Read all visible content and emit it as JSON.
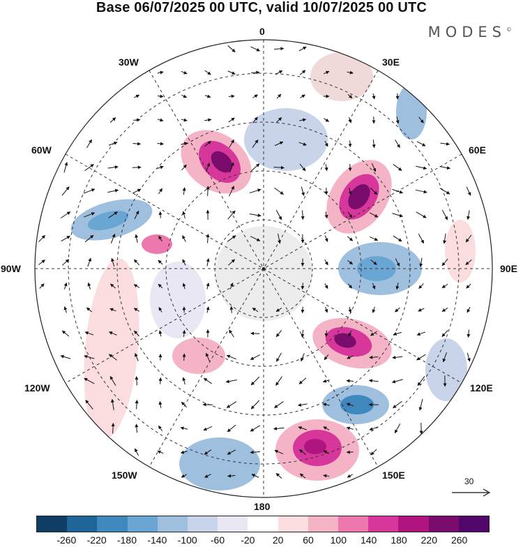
{
  "title": "Base 06/07/2025 00 UTC, valid 10/07/2025 00 UTC",
  "brand": "MODES",
  "brand_mark": "©",
  "lon_labels": {
    "l0": "0",
    "l30e": "30E",
    "l60e": "60E",
    "l90e": "90E",
    "l120e": "120E",
    "l150e": "150E",
    "l180": "180",
    "l150w": "150W",
    "l120w": "120W",
    "l90w": "90W",
    "l60w": "60W",
    "l30w": "30W"
  },
  "reference_vector": {
    "value": "30"
  },
  "colorbar": {
    "levels": [
      "-260",
      "-220",
      "-180",
      "-140",
      "-100",
      "-60",
      "-20",
      "20",
      "60",
      "100",
      "140",
      "180",
      "220",
      "260"
    ],
    "colors": [
      "#0f3d63",
      "#1f6496",
      "#3f88be",
      "#6aa6d3",
      "#9fbfdf",
      "#c9d3e9",
      "#e9e7f3",
      "#ffffff",
      "#fbdde0",
      "#f5b3c6",
      "#ec78ad",
      "#d7379a",
      "#b0147f",
      "#7a0c6e",
      "#51086a"
    ]
  },
  "icons": [
    "north-arrow-icon"
  ]
}
